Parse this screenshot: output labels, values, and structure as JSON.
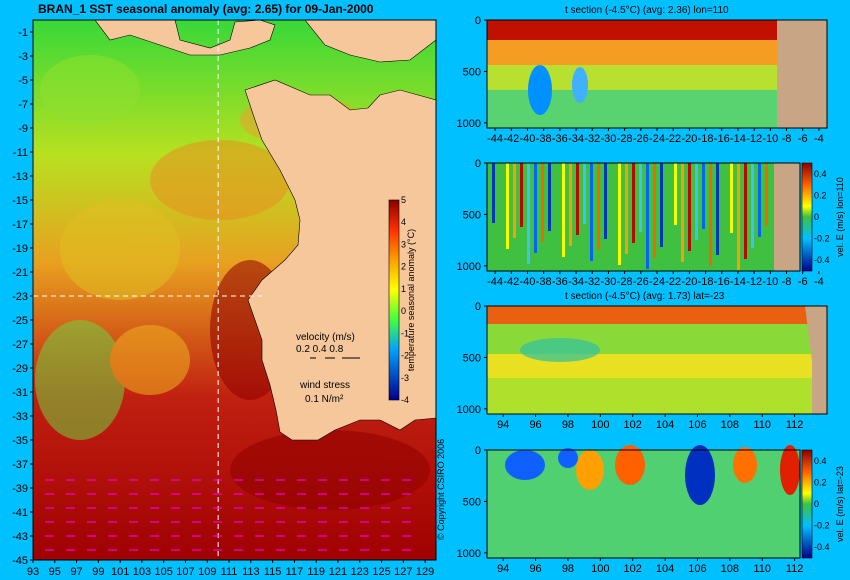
{
  "main_title": "BRAN_1 SST seasonal anomaly (avg: 2.65) for 09-Jan-2000",
  "copyright": "© Copyright CSIRO 2006",
  "colors": {
    "background": "#00c0ff",
    "land": "#f6c79b",
    "sea_floor": "#c7a585",
    "arrow": "#ff00ff"
  },
  "chart_data": [
    {
      "id": "map",
      "type": "heatmap",
      "title": "BRAN_1 SST seasonal anomaly (avg: 2.65) for 09-Jan-2000",
      "x_ticks": [
        "93",
        "95",
        "97",
        "99",
        "101",
        "103",
        "105",
        "107",
        "109",
        "111",
        "113",
        "115",
        "117",
        "119",
        "121",
        "123",
        "125",
        "127",
        "129"
      ],
      "y_ticks": [
        "-1",
        "-3",
        "-5",
        "-7",
        "-9",
        "-11",
        "-13",
        "-15",
        "-17",
        "-19",
        "-21",
        "-23",
        "-25",
        "-27",
        "-29",
        "-31",
        "-33",
        "-35",
        "-37",
        "-39",
        "-41",
        "-43",
        "-45"
      ],
      "xlim": [
        93,
        130
      ],
      "ylim": [
        -45,
        0
      ],
      "section_lon": 110,
      "section_lat": -23,
      "colorbar": {
        "label": "temperature seasonal anomaly (°C)",
        "ticks": [
          "5",
          "4",
          "3",
          "2",
          "1",
          "0",
          "-1",
          "-2",
          "-3",
          "-4"
        ],
        "range": [
          -4,
          5
        ]
      },
      "legend": {
        "velocity_label": "velocity (m/s)",
        "velocity_scale": "0.2 0.4 0.8",
        "wind_label": "wind stress",
        "wind_scale": "0.1 N/m²"
      }
    },
    {
      "id": "t_section_lon110",
      "type": "heatmap",
      "title": "t section (-4.5°C) (avg: 2.36) lon=110",
      "x_ticks": [
        "-44",
        "-42",
        "-40",
        "-38",
        "-36",
        "-34",
        "-32",
        "-30",
        "-28",
        "-26",
        "-24",
        "-22",
        "-20",
        "-18",
        "-16",
        "-14",
        "-12",
        "-10",
        "-8",
        "-6",
        "-4"
      ],
      "y_ticks": [
        "0",
        "500",
        "1000"
      ],
      "xlim": [
        -45,
        -3
      ],
      "ylim": [
        1050,
        0
      ]
    },
    {
      "id": "vel_section_lon110",
      "type": "heatmap",
      "title": "",
      "x_ticks": [
        "-44",
        "-42",
        "-40",
        "-38",
        "-36",
        "-34",
        "-32",
        "-30",
        "-28",
        "-26",
        "-24",
        "-22",
        "-20",
        "-18",
        "-16",
        "-14",
        "-12",
        "-10",
        "-8",
        "-6",
        "-4"
      ],
      "y_ticks": [
        "0",
        "500",
        "1000"
      ],
      "xlim": [
        -45,
        -3
      ],
      "ylim": [
        1050,
        0
      ],
      "colorbar": {
        "label": "vel. E (m/s) lon=110",
        "ticks": [
          "0.4",
          "0.2",
          "0",
          "-0.2",
          "-0.4"
        ],
        "range": [
          -0.5,
          0.5
        ]
      }
    },
    {
      "id": "t_section_lat-23",
      "type": "heatmap",
      "title": "t section (-4.5°C) (avg: 1.73) lat=-23",
      "x_ticks": [
        "94",
        "96",
        "98",
        "100",
        "102",
        "104",
        "106",
        "108",
        "110",
        "112"
      ],
      "y_ticks": [
        "0",
        "500",
        "1000"
      ],
      "xlim": [
        93,
        114
      ],
      "ylim": [
        1050,
        0
      ]
    },
    {
      "id": "vel_section_lat-23",
      "type": "heatmap",
      "title": "",
      "x_ticks": [
        "94",
        "96",
        "98",
        "100",
        "102",
        "104",
        "106",
        "108",
        "110",
        "112"
      ],
      "y_ticks": [
        "0",
        "500",
        "1000"
      ],
      "xlim": [
        93,
        114
      ],
      "ylim": [
        1050,
        0
      ],
      "colorbar": {
        "label": "vel. E (m/s) lat=-23",
        "ticks": [
          "0.4",
          "0.2",
          "0",
          "-0.2",
          "-0.4"
        ],
        "range": [
          -0.5,
          0.5
        ]
      }
    }
  ]
}
